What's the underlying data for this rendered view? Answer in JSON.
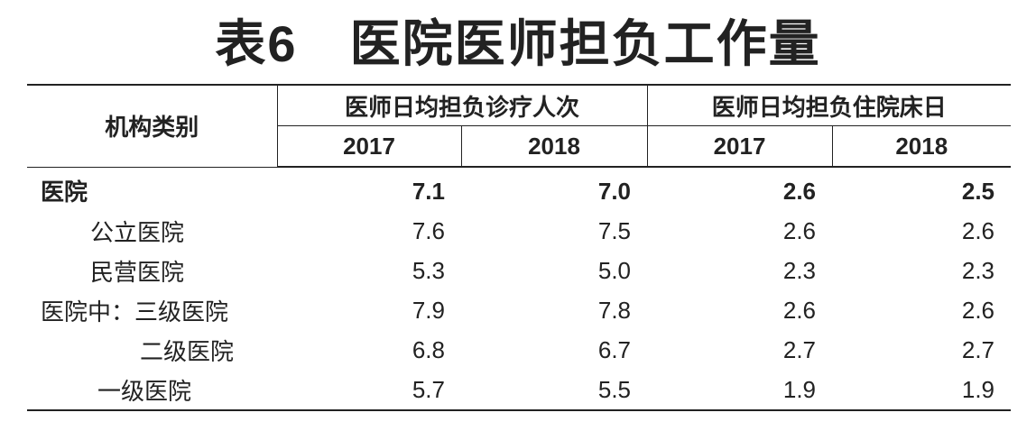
{
  "header": {
    "title": "表6　医院医师担负工作量"
  },
  "table": {
    "columns": {
      "category": "机构类别",
      "groups": [
        "医师日均担负诊疗人次",
        "医师日均担负住院床日"
      ],
      "years": [
        "2017",
        "2018",
        "2017",
        "2018"
      ]
    },
    "rows": [
      [
        "医院",
        "7.1",
        "7.0",
        "2.6",
        "2.5"
      ],
      [
        "公立医院",
        "7.6",
        "7.5",
        "2.6",
        "2.6"
      ],
      [
        "民营医院",
        "5.3",
        "5.0",
        "2.3",
        "2.3"
      ],
      [
        "医院中：三级医院",
        "7.9",
        "7.8",
        "2.6",
        "2.6"
      ],
      [
        "二级医院",
        "6.8",
        "6.7",
        "2.7",
        "2.7"
      ],
      [
        "一级医院",
        "5.7",
        "5.5",
        "1.9",
        "1.9"
      ]
    ]
  }
}
